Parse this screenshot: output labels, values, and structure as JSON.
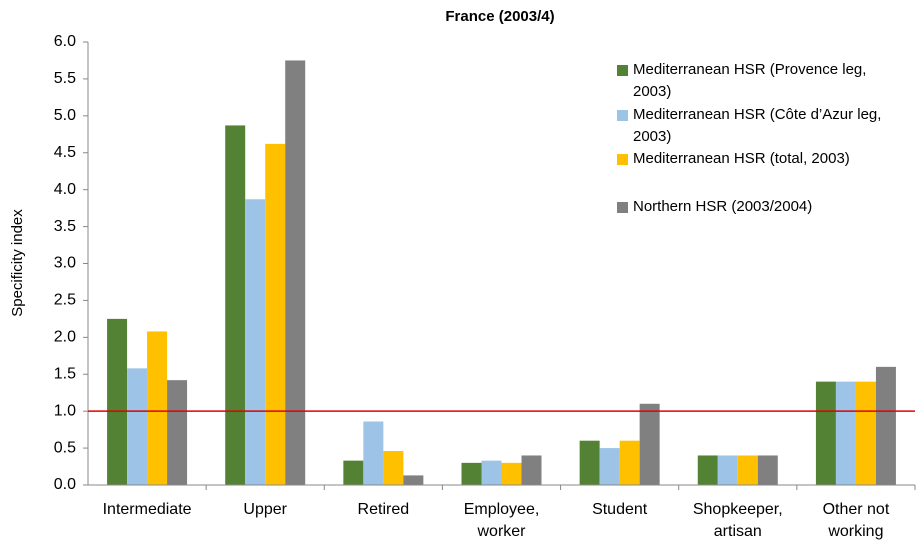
{
  "chart_data": {
    "type": "bar",
    "title": "France (2003/4)",
    "y_label": "Specificity index",
    "categories": [
      "Intermediate",
      "Upper",
      "Retired",
      "Employee, worker",
      "Student",
      "Shopkeeper, artisan",
      "Other not working"
    ],
    "series": [
      {
        "name": "Mediterranean HSR (Provence leg, 2003)",
        "color": "#548235",
        "values": [
          2.25,
          4.87,
          0.33,
          0.3,
          0.6,
          0.4,
          1.4
        ]
      },
      {
        "name": "Mediterranean HSR (Côte d’Azur leg, 2003)",
        "color": "#9dc3e6",
        "values": [
          1.58,
          3.87,
          0.86,
          0.33,
          0.5,
          0.4,
          1.4
        ]
      },
      {
        "name": "Mediterranean HSR (total, 2003)",
        "color": "#ffc000",
        "values": [
          2.08,
          4.62,
          0.46,
          0.3,
          0.6,
          0.4,
          1.4
        ]
      },
      {
        "name": "Northern HSR (2003/2004)",
        "color": "#808080",
        "values": [
          1.42,
          5.75,
          0.13,
          0.4,
          1.1,
          0.4,
          1.6
        ]
      }
    ],
    "ylim": [
      0,
      6
    ],
    "yticks": [
      {
        "value": 0,
        "label": "0.0"
      },
      0.5,
      {
        "value": 1,
        "label": "1.0"
      },
      1.5,
      {
        "value": 2,
        "label": "2.0"
      },
      2.5,
      {
        "value": 3,
        "label": "3.0"
      },
      3.5,
      {
        "value": 4,
        "label": "4.0"
      },
      4.5,
      {
        "value": 5,
        "label": "5.0"
      },
      5.5,
      {
        "value": 6,
        "label": "6.0"
      }
    ],
    "grid": false,
    "reference_line": {
      "value": 1,
      "color": "#e00000"
    },
    "legend": "upper right"
  }
}
